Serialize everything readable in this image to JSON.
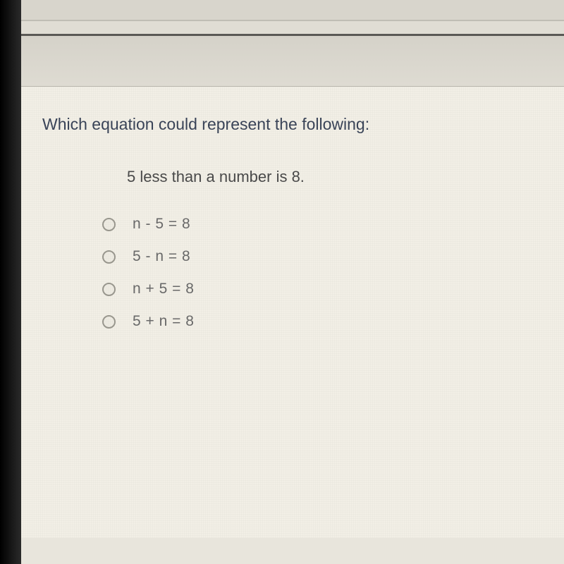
{
  "question": {
    "prompt": "Which equation could represent the following:",
    "statement": "5 less than a number is 8.",
    "options": [
      {
        "label": "n - 5 = 8"
      },
      {
        "label": "5 - n = 8"
      },
      {
        "label": "n + 5 = 8"
      },
      {
        "label": "5 + n = 8"
      }
    ]
  },
  "colors": {
    "card_bg": "#f2efe6",
    "prompt_color": "#3a4458",
    "statement_color": "#4a4a4a",
    "option_color": "#6a6a6a",
    "radio_border": "#9a988f"
  },
  "typography": {
    "prompt_fontsize": 23,
    "statement_fontsize": 22,
    "option_fontsize": 21
  }
}
